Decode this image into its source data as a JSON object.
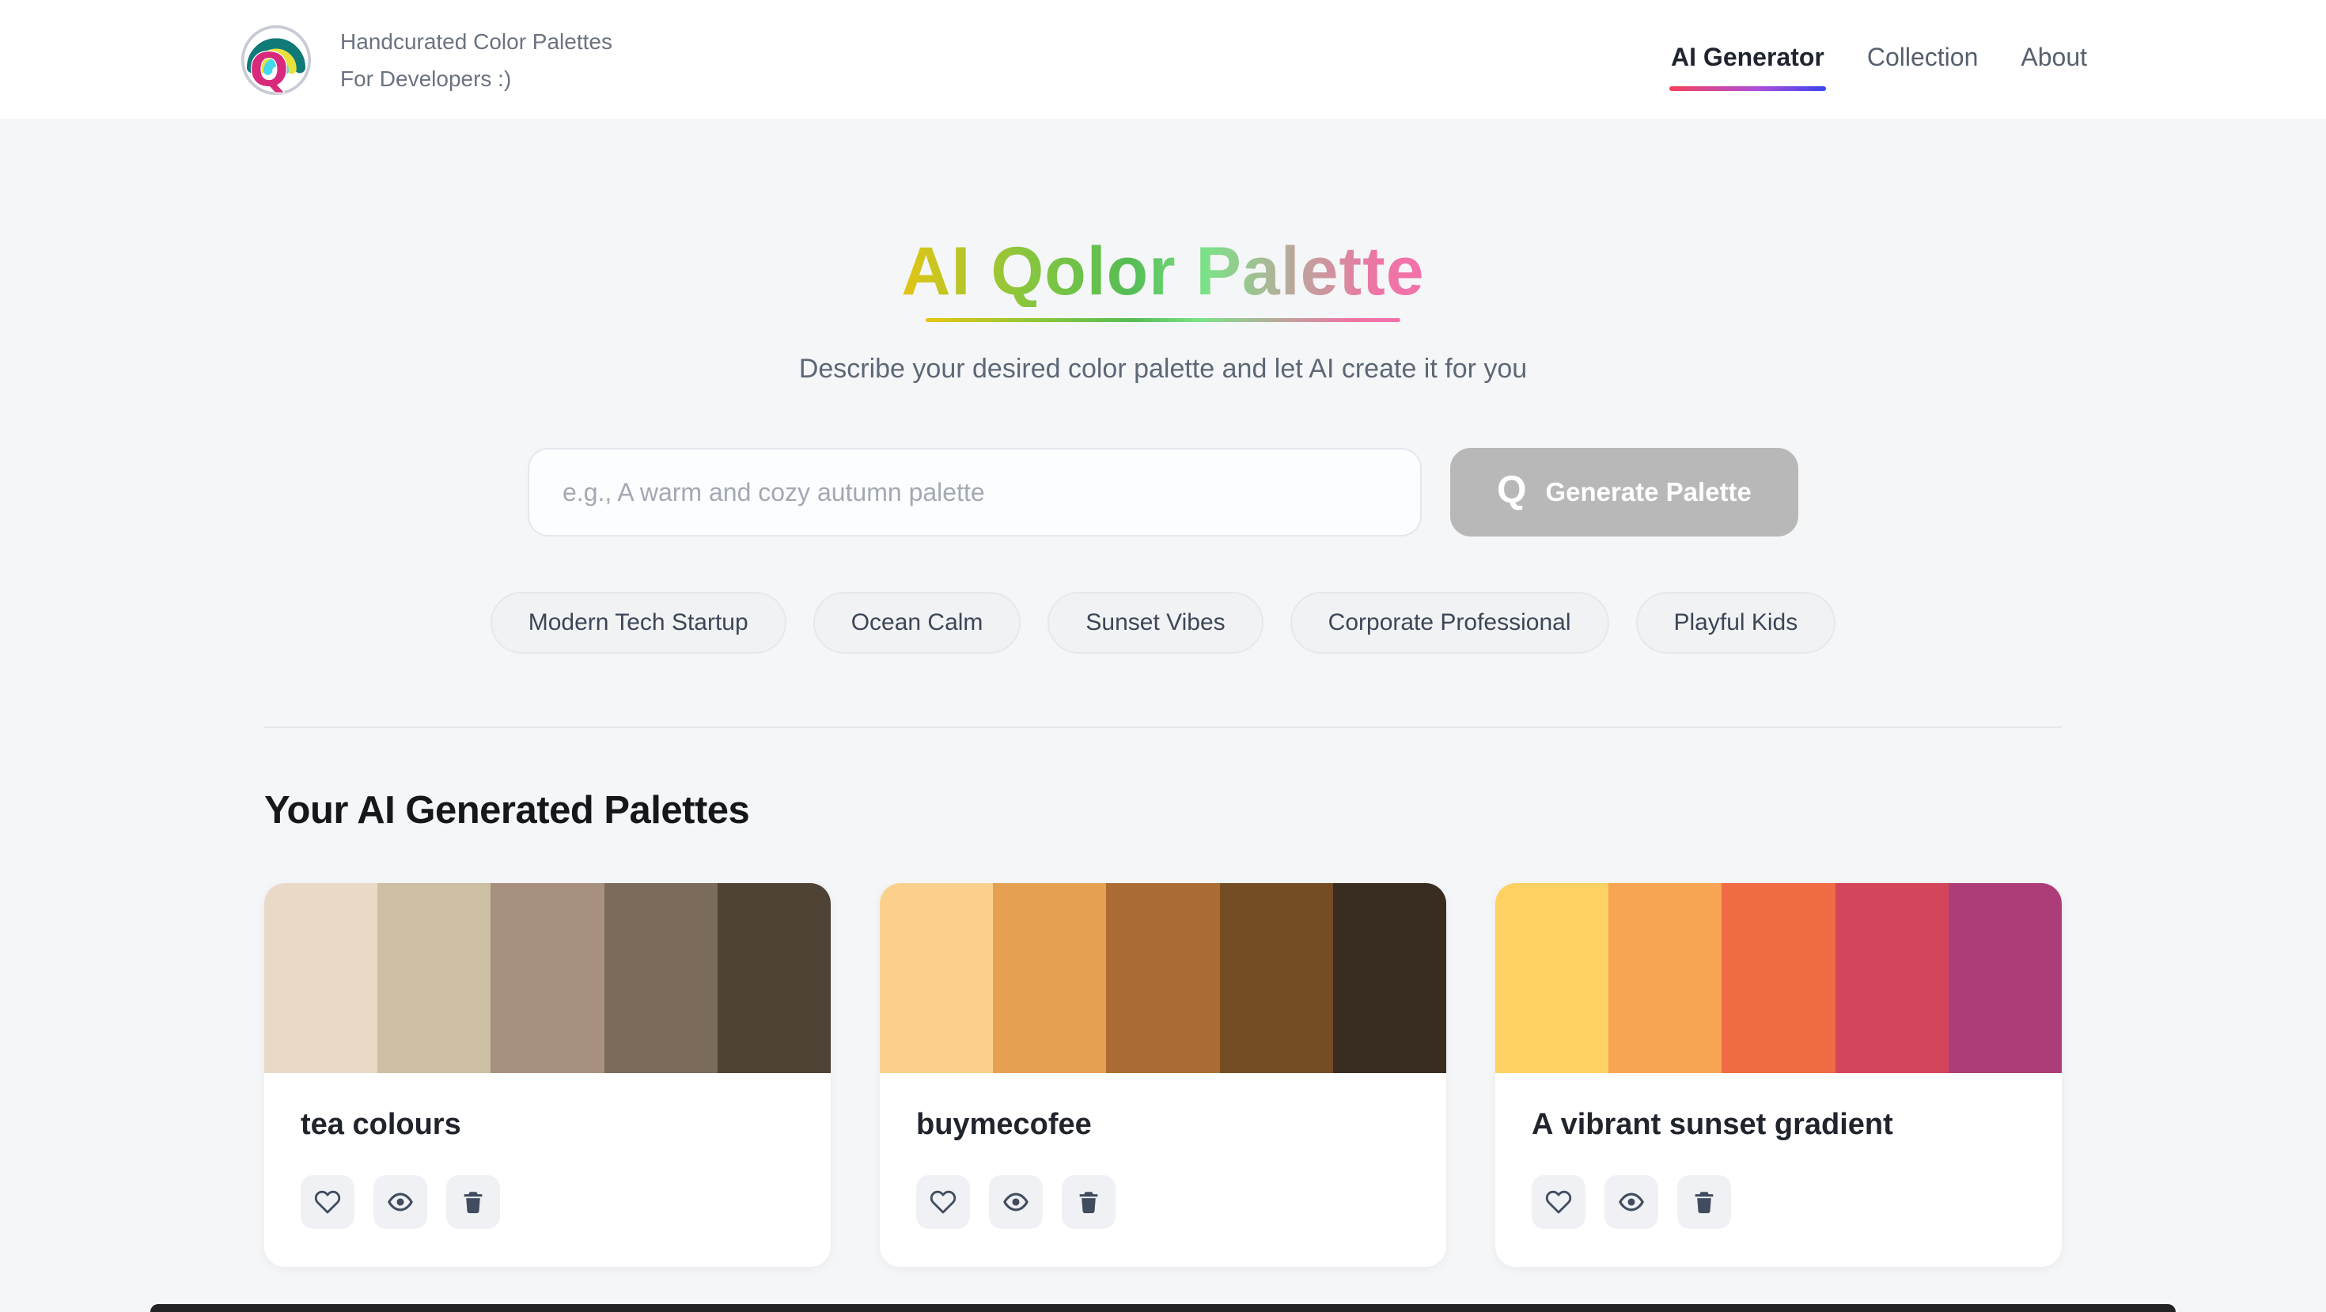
{
  "header": {
    "logo": "q-rainbow-logo",
    "tagline_line1": "Handcurated Color Palettes",
    "tagline_line2": "For Developers :)",
    "nav": [
      {
        "label": "AI Generator",
        "active": true
      },
      {
        "label": "Collection",
        "active": false
      },
      {
        "label": "About",
        "active": false
      }
    ]
  },
  "hero": {
    "title": "AI Qolor Palette",
    "subtitle": "Describe your desired color palette and let AI create it for you",
    "input_placeholder": "e.g., A warm and cozy autumn palette",
    "generate_button": {
      "icon_text": "Q",
      "label": "Generate Palette"
    },
    "suggestions": [
      "Modern Tech Startup",
      "Ocean Calm",
      "Sunset Vibes",
      "Corporate Professional",
      "Playful Kids"
    ]
  },
  "palettes": {
    "heading": "Your AI Generated Palettes",
    "cards": [
      {
        "title": "tea colours",
        "colors": [
          "#E9DAC8",
          "#CDBFA2",
          "#A8907E",
          "#7A6B5A",
          "#4E4334"
        ]
      },
      {
        "title": "buymecofee",
        "colors": [
          "#FBD18D",
          "#E5A051",
          "#AB6C33",
          "#744D25",
          "#392C21"
        ]
      },
      {
        "title": "A vibrant sunset gradient",
        "colors": [
          "#FDD162",
          "#F7A453",
          "#EE6B44",
          "#D3455B",
          "#AD3D78"
        ]
      }
    ],
    "card_actions": [
      "favorite",
      "view",
      "delete"
    ]
  },
  "theme": {
    "page_bg": "#F5F6F8",
    "header_bg": "#FFFFFF",
    "title_gradient": [
      "#E7C513",
      "#6CC04A",
      "#7CE287",
      "#B9A99B",
      "#F472AD"
    ],
    "nav_underline_gradient": [
      "#F5415A",
      "#B04FD8",
      "#3B45F0"
    ],
    "generate_button_bg": "#B8B8B8",
    "chip_bg": "#F1F2F4",
    "icon_color": "#414D5F"
  }
}
